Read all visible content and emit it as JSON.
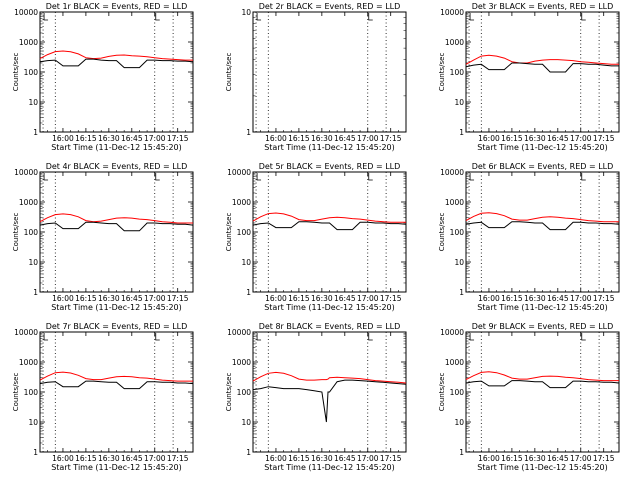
{
  "ylabel": "Counts/sec",
  "xlabel": "Start Time (11-Dec-12 15:45:20)",
  "x_ticks": [
    "16:00",
    "16:15",
    "16:30",
    "16:45",
    "17:00",
    "17:15"
  ],
  "y_ticks": [
    "1",
    "10",
    "100",
    "1000",
    "10000"
  ],
  "y_ticks_det2": [
    "1",
    "10"
  ],
  "colors": {
    "events": "#000000",
    "lld": "#ff0000"
  },
  "chart_data": [
    {
      "type": "line",
      "title": "Det 1r BLACK = Events, RED = LLD",
      "xlabel": "Start Time (11-Dec-12 15:45:20)",
      "ylabel": "Counts/sec",
      "x_unit": "minutes after 15:45:20",
      "xlim": [
        0,
        100
      ],
      "ylim": [
        1,
        10000
      ],
      "yscale": "log",
      "x": [
        0,
        5,
        10,
        15,
        20,
        25,
        30,
        35,
        40,
        45,
        50,
        55,
        60,
        65,
        70,
        75,
        80,
        85,
        90,
        95,
        100
      ],
      "series": [
        {
          "name": "BLACK = Events",
          "values": [
            220,
            240,
            250,
            160,
            160,
            160,
            270,
            270,
            250,
            240,
            240,
            140,
            140,
            140,
            250,
            250,
            240,
            240,
            230,
            230,
            220
          ]
        },
        {
          "name": "RED = LLD",
          "values": [
            280,
            380,
            480,
            500,
            470,
            400,
            300,
            280,
            290,
            330,
            360,
            370,
            350,
            340,
            320,
            300,
            280,
            270,
            260,
            250,
            250
          ]
        }
      ],
      "dotted_x": [
        2,
        10,
        75,
        87
      ]
    },
    {
      "type": "line",
      "title": "Det 2r BLACK = Events, RED = LLD",
      "xlabel": "Start Time (11-Dec-12 15:45:20)",
      "ylabel": "Counts/sec",
      "x_unit": "minutes after 15:45:20",
      "xlim": [
        0,
        100
      ],
      "ylim": [
        1,
        10
      ],
      "yscale": "log",
      "x": [],
      "series": [],
      "dotted_x": [
        2,
        10,
        75,
        87
      ]
    },
    {
      "type": "line",
      "title": "Det 3r BLACK = Events, RED = LLD",
      "xlabel": "Start Time (11-Dec-12 15:45:20)",
      "ylabel": "Counts/sec",
      "x_unit": "minutes after 15:45:20",
      "xlim": [
        0,
        100
      ],
      "ylim": [
        1,
        10000
      ],
      "yscale": "log",
      "x": [
        0,
        5,
        10,
        15,
        20,
        25,
        30,
        35,
        40,
        45,
        50,
        55,
        60,
        65,
        70,
        75,
        80,
        85,
        90,
        95,
        100
      ],
      "series": [
        {
          "name": "BLACK = Events",
          "values": [
            150,
            170,
            180,
            120,
            120,
            120,
            200,
            200,
            190,
            180,
            180,
            100,
            100,
            100,
            190,
            190,
            180,
            180,
            170,
            160,
            160
          ]
        },
        {
          "name": "RED = LLD",
          "values": [
            180,
            250,
            340,
            360,
            340,
            290,
            220,
            200,
            200,
            230,
            250,
            260,
            260,
            250,
            240,
            220,
            210,
            200,
            190,
            180,
            180
          ]
        }
      ],
      "dotted_x": [
        2,
        10,
        75,
        87
      ]
    },
    {
      "type": "line",
      "title": "Det 4r BLACK = Events, RED = LLD",
      "xlabel": "Start Time (11-Dec-12 15:45:20)",
      "ylabel": "Counts/sec",
      "x_unit": "minutes after 15:45:20",
      "xlim": [
        0,
        100
      ],
      "ylim": [
        1,
        10000
      ],
      "yscale": "log",
      "x": [
        0,
        5,
        10,
        15,
        20,
        25,
        30,
        35,
        40,
        45,
        50,
        55,
        60,
        65,
        70,
        75,
        80,
        85,
        90,
        95,
        100
      ],
      "series": [
        {
          "name": "BLACK = Events",
          "values": [
            170,
            190,
            200,
            130,
            130,
            130,
            210,
            210,
            200,
            190,
            190,
            110,
            110,
            110,
            200,
            200,
            190,
            190,
            180,
            180,
            170
          ]
        },
        {
          "name": "RED = LLD",
          "values": [
            220,
            300,
            380,
            400,
            380,
            320,
            240,
            220,
            230,
            260,
            290,
            300,
            290,
            270,
            260,
            240,
            220,
            210,
            200,
            200,
            200
          ]
        }
      ],
      "dotted_x": [
        2,
        10,
        75,
        87
      ]
    },
    {
      "type": "line",
      "title": "Det 5r BLACK = Events, RED = LLD",
      "xlabel": "Start Time (11-Dec-12 15:45:20)",
      "ylabel": "Counts/sec",
      "x_unit": "minutes after 15:45:20",
      "xlim": [
        0,
        100
      ],
      "ylim": [
        1,
        10000
      ],
      "yscale": "log",
      "x": [
        0,
        5,
        10,
        15,
        20,
        25,
        30,
        35,
        40,
        45,
        50,
        55,
        60,
        65,
        70,
        75,
        80,
        85,
        90,
        95,
        100
      ],
      "series": [
        {
          "name": "BLACK = Events",
          "values": [
            170,
            190,
            200,
            140,
            140,
            140,
            220,
            220,
            210,
            200,
            200,
            120,
            120,
            120,
            210,
            210,
            200,
            200,
            190,
            190,
            180
          ]
        },
        {
          "name": "RED = LLD",
          "values": [
            230,
            320,
            410,
            430,
            400,
            340,
            260,
            240,
            240,
            270,
            300,
            310,
            300,
            280,
            270,
            250,
            230,
            220,
            210,
            210,
            210
          ]
        }
      ],
      "dotted_x": [
        2,
        10,
        75,
        87
      ]
    },
    {
      "type": "line",
      "title": "Det 6r BLACK = Events, RED = LLD",
      "xlabel": "Start Time (11-Dec-12 15:45:20)",
      "ylabel": "Counts/sec",
      "x_unit": "minutes after 15:45:20",
      "xlim": [
        0,
        100
      ],
      "ylim": [
        1,
        10000
      ],
      "yscale": "log",
      "x": [
        0,
        5,
        10,
        15,
        20,
        25,
        30,
        35,
        40,
        45,
        50,
        55,
        60,
        65,
        70,
        75,
        80,
        85,
        90,
        95,
        100
      ],
      "series": [
        {
          "name": "BLACK = Events",
          "values": [
            180,
            200,
            210,
            140,
            140,
            140,
            220,
            220,
            210,
            200,
            200,
            120,
            120,
            120,
            210,
            210,
            200,
            200,
            190,
            190,
            180
          ]
        },
        {
          "name": "RED = LLD",
          "values": [
            240,
            330,
            420,
            440,
            410,
            350,
            270,
            250,
            250,
            280,
            310,
            320,
            310,
            290,
            280,
            260,
            240,
            230,
            220,
            220,
            220
          ]
        }
      ],
      "dotted_x": [
        2,
        10,
        75,
        87
      ]
    },
    {
      "type": "line",
      "title": "Det 7r BLACK = Events, RED = LLD",
      "xlabel": "Start Time (11-Dec-12 15:45:20)",
      "ylabel": "Counts/sec",
      "x_unit": "minutes after 15:45:20",
      "xlim": [
        0,
        100
      ],
      "ylim": [
        1,
        10000
      ],
      "yscale": "log",
      "x": [
        0,
        5,
        10,
        15,
        20,
        25,
        30,
        35,
        40,
        45,
        50,
        55,
        60,
        65,
        70,
        75,
        80,
        85,
        90,
        95,
        100
      ],
      "series": [
        {
          "name": "BLACK = Events",
          "values": [
            190,
            210,
            220,
            150,
            150,
            150,
            230,
            230,
            220,
            210,
            210,
            130,
            130,
            130,
            220,
            220,
            210,
            210,
            200,
            200,
            190
          ]
        },
        {
          "name": "RED = LLD",
          "values": [
            250,
            340,
            440,
            460,
            430,
            360,
            280,
            260,
            260,
            290,
            320,
            330,
            320,
            300,
            290,
            270,
            250,
            240,
            230,
            230,
            230
          ]
        }
      ],
      "dotted_x": [
        2,
        10,
        75,
        87
      ]
    },
    {
      "type": "line",
      "title": "Det 8r BLACK = Events, RED = LLD",
      "xlabel": "Start Time (11-Dec-12 15:45:20)",
      "ylabel": "Counts/sec",
      "x_unit": "minutes after 15:45:20",
      "xlim": [
        0,
        100
      ],
      "ylim": [
        1,
        10000
      ],
      "yscale": "log",
      "x": [
        0,
        5,
        10,
        15,
        20,
        25,
        30,
        35,
        40,
        45,
        48,
        49,
        50,
        55,
        60,
        65,
        70,
        75,
        80,
        85,
        90,
        95,
        100
      ],
      "series": [
        {
          "name": "BLACK = Events",
          "values": [
            120,
            130,
            150,
            140,
            130,
            130,
            130,
            120,
            110,
            100,
            10,
            100,
            100,
            220,
            250,
            250,
            240,
            230,
            220,
            210,
            200,
            190,
            180
          ]
        },
        {
          "name": "RED = LLD",
          "values": [
            230,
            320,
            420,
            450,
            420,
            350,
            270,
            250,
            250,
            260,
            260,
            270,
            300,
            310,
            300,
            290,
            280,
            260,
            240,
            230,
            220,
            210,
            200
          ]
        }
      ],
      "dotted_x": [
        2,
        10,
        75,
        87
      ]
    },
    {
      "type": "line",
      "title": "Det 9r BLACK = Events, RED = LLD",
      "xlabel": "Start Time (11-Dec-12 15:45:20)",
      "ylabel": "Counts/sec",
      "x_unit": "minutes after 15:45:20",
      "xlim": [
        0,
        100
      ],
      "ylim": [
        1,
        10000
      ],
      "yscale": "log",
      "x": [
        0,
        5,
        10,
        15,
        20,
        25,
        30,
        35,
        40,
        45,
        50,
        55,
        60,
        65,
        70,
        75,
        80,
        85,
        90,
        95,
        100
      ],
      "series": [
        {
          "name": "BLACK = Events",
          "values": [
            200,
            220,
            230,
            160,
            160,
            160,
            240,
            240,
            230,
            220,
            220,
            140,
            140,
            140,
            230,
            230,
            220,
            220,
            210,
            210,
            200
          ]
        },
        {
          "name": "RED = LLD",
          "values": [
            260,
            350,
            450,
            470,
            440,
            370,
            290,
            270,
            270,
            300,
            330,
            340,
            330,
            310,
            300,
            280,
            260,
            250,
            240,
            240,
            240
          ]
        }
      ],
      "dotted_x": [
        2,
        10,
        75,
        87
      ]
    }
  ]
}
